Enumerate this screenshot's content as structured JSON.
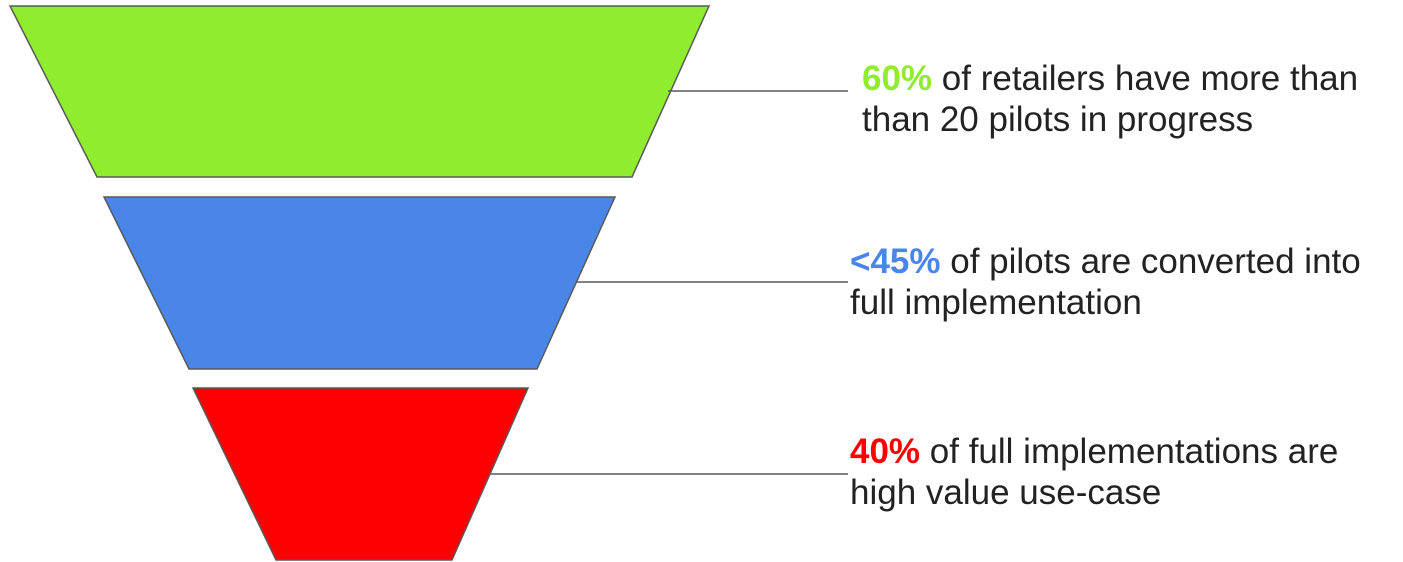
{
  "stages": [
    {
      "percent": "60%",
      "line1_rest": " of retailers have more than",
      "line2": "than 20 pilots in progress",
      "color": "#8fec2f"
    },
    {
      "percent": "<45%",
      "line1_rest": " of pilots are converted into",
      "line2": "full implementation",
      "color": "#4a86e8"
    },
    {
      "percent": "40%",
      "line1_rest": " of full implementations are",
      "line2": "high value use-case",
      "color": "#ff0000"
    }
  ],
  "outline_color": "#595959",
  "text_color": "#222222"
}
